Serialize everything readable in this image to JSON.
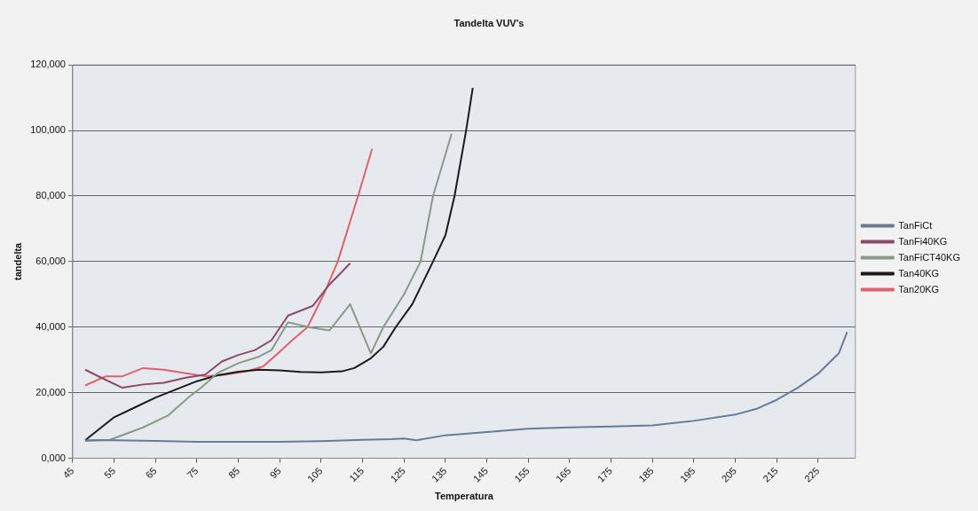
{
  "chart_data": {
    "type": "line",
    "title": "Tandelta VUV's",
    "xlabel": "Temperatura",
    "ylabel": "tandelta",
    "xlim": [
      45,
      234
    ],
    "xticks": [
      45,
      55,
      65,
      75,
      85,
      95,
      105,
      115,
      125,
      135,
      145,
      155,
      165,
      175,
      185,
      195,
      205,
      215,
      225
    ],
    "ylim": [
      0,
      120000
    ],
    "yticks": [
      {
        "value": 0,
        "label": "0,000"
      },
      {
        "value": 20000,
        "label": "20,000"
      },
      {
        "value": 40000,
        "label": "40,000"
      },
      {
        "value": 60000,
        "label": "60,000"
      },
      {
        "value": 80000,
        "label": "80,000"
      },
      {
        "value": 100000,
        "label": "100,000"
      },
      {
        "value": 120000,
        "label": "120,000"
      }
    ],
    "grid": "y",
    "legend": "right",
    "marker": "none",
    "line_style": "solid",
    "series": [
      {
        "name": "TanFiCt",
        "color": "#6a7a95",
        "x": [
          48,
          55,
          65,
          75,
          85,
          95,
          105,
          115,
          122,
          125,
          128,
          135,
          145,
          155,
          165,
          175,
          185,
          195,
          205,
          210,
          215,
          220,
          225,
          230,
          232
        ],
        "values": [
          5500,
          5500,
          5300,
          5000,
          5000,
          5000,
          5200,
          5600,
          5800,
          6000,
          5500,
          7000,
          8000,
          9000,
          9400,
          9700,
          10000,
          11400,
          13300,
          15000,
          17800,
          21400,
          25800,
          32000,
          38500
        ]
      },
      {
        "name": "TanFi40KG",
        "color": "#8b4a6a",
        "x": [
          48,
          52,
          57,
          62,
          67,
          72,
          77,
          81,
          85,
          89,
          93,
          97,
          103,
          107,
          112
        ],
        "values": [
          27000,
          24500,
          21500,
          22500,
          23000,
          24500,
          25500,
          29500,
          31500,
          33000,
          36000,
          43500,
          46500,
          53000,
          59500
        ]
      },
      {
        "name": "TanFiCT40KG",
        "color": "#8a9a8a",
        "x": [
          48,
          54,
          58,
          62,
          68,
          73,
          76,
          80,
          85,
          90,
          93,
          97,
          102,
          107,
          112,
          117,
          120,
          125,
          129,
          132,
          136.5
        ],
        "values": [
          5300,
          5600,
          7500,
          9400,
          13000,
          18600,
          21500,
          26000,
          29000,
          31000,
          33000,
          41500,
          40000,
          39000,
          47000,
          32000,
          40000,
          50000,
          60000,
          80000,
          99000
        ]
      },
      {
        "name": "Tan40KG",
        "color": "#1a1a1a",
        "x": [
          48,
          55,
          60,
          65,
          70,
          75,
          80,
          85,
          90,
          95,
          100,
          105,
          110,
          113,
          117,
          120,
          123,
          127,
          132,
          135,
          137.2,
          140,
          141.6
        ],
        "values": [
          5500,
          12500,
          15500,
          18500,
          21000,
          23500,
          25300,
          26400,
          27000,
          26800,
          26300,
          26200,
          26500,
          27500,
          30500,
          34000,
          40000,
          47000,
          60000,
          68000,
          80000,
          100000,
          113000
        ]
      },
      {
        "name": "Tan20KG",
        "color": "#e06070",
        "x": [
          48,
          53,
          57,
          62,
          67,
          72,
          77,
          82,
          87,
          91,
          95,
          98,
          101.7,
          105.6,
          109,
          113.9,
          117.3
        ],
        "values": [
          22200,
          25000,
          25000,
          27500,
          27000,
          26000,
          25000,
          25500,
          26500,
          28000,
          32500,
          36000,
          40000,
          50000,
          60000,
          80000,
          94400
        ]
      }
    ]
  }
}
